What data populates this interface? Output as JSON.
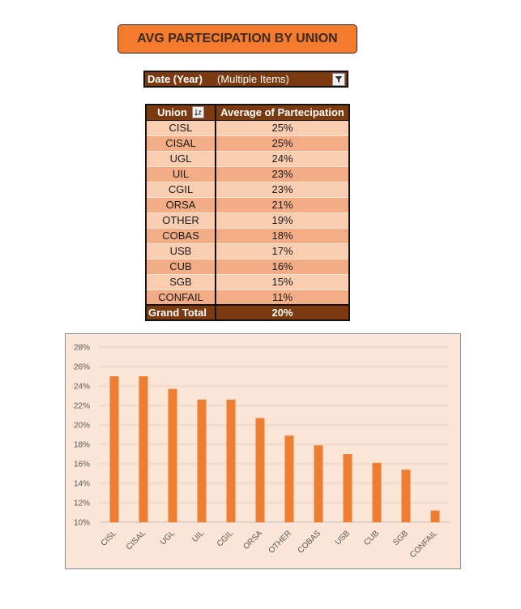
{
  "title": "AVG PARTECIPATION BY UNION",
  "filter": {
    "label": "Date (Year)",
    "value": "(Multiple Items)",
    "icon": "filter-icon"
  },
  "pivot": {
    "col1_header": "Union",
    "col2_header": "Average of Partecipation",
    "sort_icon": "sort-icon",
    "rows": [
      {
        "union": "CISL",
        "value": "25%"
      },
      {
        "union": "CISAL",
        "value": "25%"
      },
      {
        "union": "UGL",
        "value": "24%"
      },
      {
        "union": "UIL",
        "value": "23%"
      },
      {
        "union": "CGIL",
        "value": "23%"
      },
      {
        "union": "ORSA",
        "value": "21%"
      },
      {
        "union": "OTHER",
        "value": "19%"
      },
      {
        "union": "COBAS",
        "value": "18%"
      },
      {
        "union": "USB",
        "value": "17%"
      },
      {
        "union": "CUB",
        "value": "16%"
      },
      {
        "union": "SGB",
        "value": "15%"
      },
      {
        "union": "CONFAIL",
        "value": "11%"
      }
    ],
    "total_label": "Grand Total",
    "total_value": "20%"
  },
  "colors": {
    "bar": "#ed7d31",
    "header": "#7b3a10",
    "title_bg": "#f47a2e",
    "chart_bg": "#fbe5d6"
  },
  "chart_data": {
    "type": "bar",
    "categories": [
      "CISL",
      "CISAL",
      "UGL",
      "UIL",
      "CGIL",
      "ORSA",
      "OTHER",
      "COBAS",
      "USB",
      "CUB",
      "SGB",
      "CONFAIL"
    ],
    "values": [
      25.0,
      25.0,
      23.7,
      22.6,
      22.6,
      20.7,
      18.9,
      17.9,
      17.0,
      16.1,
      15.4,
      11.2
    ],
    "yticks": [
      "10%",
      "12%",
      "14%",
      "16%",
      "18%",
      "20%",
      "22%",
      "24%",
      "26%",
      "28%"
    ],
    "ylim": [
      10,
      28
    ],
    "grid": true,
    "legend": "none"
  }
}
